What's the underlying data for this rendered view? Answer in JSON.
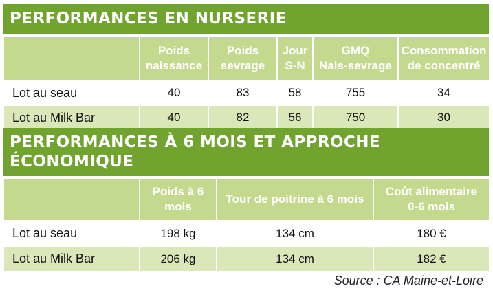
{
  "section1": {
    "title": "PERFORMANCES EN NURSERIE",
    "headers": [
      {
        "line1": "Poids",
        "line2": "naissance"
      },
      {
        "line1": "Poids",
        "line2": "sevrage"
      },
      {
        "line1": "Jour",
        "line2": "S-N"
      },
      {
        "line1": "GMQ",
        "line2": "Nais-sevrage"
      },
      {
        "line1": "Consommation",
        "line2": "de concentré"
      }
    ],
    "rows": [
      {
        "label": "Lot au seau",
        "values": [
          "40",
          "83",
          "58",
          "755",
          "34"
        ]
      },
      {
        "label": "Lot au Milk Bar",
        "values": [
          "40",
          "82",
          "56",
          "750",
          "30"
        ]
      }
    ]
  },
  "section2": {
    "title_line1": "PERFORMANCES À 6 MOIS ET APPROCHE",
    "title_line2": "ÉCONOMIQUE",
    "headers": [
      {
        "line1": "Poids à 6",
        "line2": "mois"
      },
      {
        "line1": "Tour de poitrine à 6 mois",
        "line2": ""
      },
      {
        "line1": "Coût alimentaire",
        "line2": "0-6 mois"
      }
    ],
    "rows": [
      {
        "label": "Lot au seau",
        "values": [
          "198 kg",
          "134 cm",
          "180 €"
        ]
      },
      {
        "label": "Lot au Milk Bar",
        "values": [
          "206 kg",
          "134 cm",
          "182 €"
        ]
      }
    ]
  },
  "source": "Source : CA Maine-et-Loire",
  "colors": {
    "banner": "#71a32f",
    "header_row": "#c2d98e",
    "alt_row": "#d9e7b9"
  }
}
